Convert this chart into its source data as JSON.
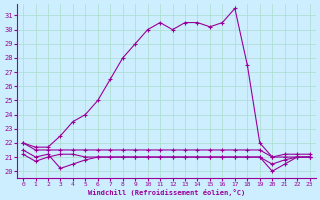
{
  "xlabel": "Windchill (Refroidissement éolien,°C)",
  "bg_color": "#cceeff",
  "grid_color": "#aaddcc",
  "line_color": "#990099",
  "x_ticks": [
    0,
    1,
    2,
    3,
    4,
    5,
    6,
    7,
    8,
    9,
    10,
    11,
    12,
    13,
    14,
    15,
    16,
    17,
    18,
    19,
    20,
    21,
    22,
    23
  ],
  "y_ticks": [
    20,
    21,
    22,
    23,
    24,
    25,
    26,
    27,
    28,
    29,
    30,
    31
  ],
  "xlim": [
    -0.5,
    23.5
  ],
  "ylim": [
    19.5,
    31.8
  ],
  "series": [
    {
      "x": [
        0,
        1,
        2,
        3,
        4,
        5,
        6,
        7,
        8,
        9,
        10,
        11,
        12,
        13,
        14,
        15,
        16,
        17,
        18,
        19,
        20,
        21,
        22,
        23
      ],
      "y": [
        22.0,
        21.7,
        21.7,
        22.5,
        23.5,
        24.0,
        25.0,
        26.5,
        28.0,
        29.0,
        30.0,
        30.5,
        30.0,
        30.5,
        30.5,
        30.2,
        30.5,
        31.5,
        27.5,
        22.0,
        21.0,
        21.0,
        21.0,
        21.0
      ]
    },
    {
      "x": [
        0,
        1,
        2,
        3,
        4,
        5,
        6,
        7,
        8,
        9,
        10,
        11,
        12,
        13,
        14,
        15,
        16,
        17,
        18,
        19,
        20,
        21,
        22,
        23
      ],
      "y": [
        22.0,
        21.5,
        21.5,
        21.5,
        21.5,
        21.5,
        21.5,
        21.5,
        21.5,
        21.5,
        21.5,
        21.5,
        21.5,
        21.5,
        21.5,
        21.5,
        21.5,
        21.5,
        21.5,
        21.5,
        21.0,
        21.2,
        21.2,
        21.2
      ]
    },
    {
      "x": [
        0,
        1,
        2,
        3,
        4,
        5,
        6,
        7,
        8,
        9,
        10,
        11,
        12,
        13,
        14,
        15,
        16,
        17,
        18,
        19,
        20,
        21,
        22,
        23
      ],
      "y": [
        21.5,
        21.0,
        21.2,
        20.2,
        20.5,
        20.8,
        21.0,
        21.0,
        21.0,
        21.0,
        21.0,
        21.0,
        21.0,
        21.0,
        21.0,
        21.0,
        21.0,
        21.0,
        21.0,
        21.0,
        20.0,
        20.5,
        21.0,
        21.0
      ]
    },
    {
      "x": [
        0,
        1,
        2,
        3,
        4,
        5,
        6,
        7,
        8,
        9,
        10,
        11,
        12,
        13,
        14,
        15,
        16,
        17,
        18,
        19,
        20,
        21,
        22,
        23
      ],
      "y": [
        21.2,
        20.7,
        21.0,
        21.2,
        21.2,
        21.0,
        21.0,
        21.0,
        21.0,
        21.0,
        21.0,
        21.0,
        21.0,
        21.0,
        21.0,
        21.0,
        21.0,
        21.0,
        21.0,
        21.0,
        20.5,
        20.8,
        21.0,
        21.0
      ]
    }
  ]
}
